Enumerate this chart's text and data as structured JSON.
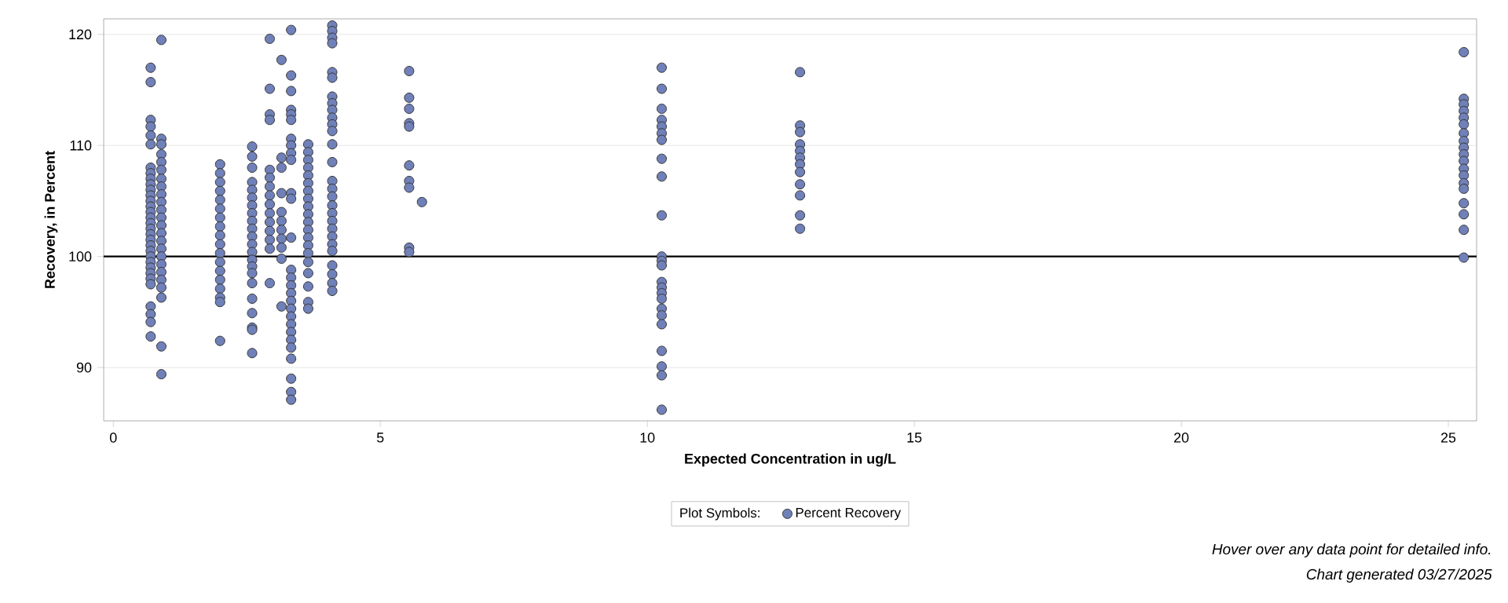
{
  "chart_data": {
    "type": "scatter",
    "xlabel": "Expected Concentration in ug/L",
    "ylabel": "Recovery, in Percent",
    "legend_title": "Plot Symbols:",
    "annotations": [
      "Hover over any data point for detailed info.",
      "Chart generated 03/27/2025"
    ],
    "xlim": [
      -0.18,
      25.53
    ],
    "ylim": [
      85.2,
      121.4
    ],
    "xticks": [
      0,
      5,
      10,
      15,
      20,
      25
    ],
    "yticks": [
      90,
      100,
      110,
      120
    ],
    "grid": "y",
    "legend": "bottom",
    "marker": "circle",
    "ref_lines": [
      {
        "axis": "y",
        "value": 100,
        "color": "#000000"
      }
    ],
    "series": [
      {
        "name": "Percent Recovery",
        "color": "#7080b8",
        "x": [
          0.7,
          0.7,
          0.7,
          0.7,
          0.7,
          0.7,
          0.7,
          0.7,
          0.7,
          0.7,
          0.7,
          0.7,
          0.7,
          0.7,
          0.7,
          0.7,
          0.7,
          0.7,
          0.7,
          0.7,
          0.7,
          0.7,
          0.7,
          0.7,
          0.7,
          0.7,
          0.7,
          0.7,
          0.7,
          0.7,
          0.7,
          0.7,
          0.9,
          0.9,
          0.9,
          0.9,
          0.9,
          0.9,
          0.9,
          0.9,
          0.9,
          0.9,
          0.9,
          0.9,
          0.9,
          0.9,
          0.9,
          0.9,
          0.9,
          0.9,
          0.9,
          0.9,
          0.9,
          0.9,
          0.9,
          0.9,
          2.0,
          2.0,
          2.0,
          2.0,
          2.0,
          2.0,
          2.0,
          2.0,
          2.0,
          2.0,
          2.0,
          2.0,
          2.0,
          2.0,
          2.0,
          2.0,
          2.0,
          2.0,
          2.6,
          2.6,
          2.6,
          2.6,
          2.6,
          2.6,
          2.6,
          2.6,
          2.6,
          2.6,
          2.6,
          2.6,
          2.6,
          2.6,
          2.6,
          2.6,
          2.6,
          2.6,
          2.6,
          2.6,
          2.6,
          2.6,
          2.93,
          2.93,
          2.93,
          2.93,
          2.93,
          2.93,
          2.93,
          2.93,
          2.93,
          2.93,
          2.93,
          2.93,
          2.93,
          2.93,
          2.93,
          3.15,
          3.15,
          3.15,
          3.15,
          3.15,
          3.15,
          3.15,
          3.15,
          3.15,
          3.15,
          3.15,
          3.33,
          3.33,
          3.33,
          3.33,
          3.33,
          3.33,
          3.33,
          3.33,
          3.33,
          3.33,
          3.33,
          3.33,
          3.33,
          3.33,
          3.33,
          3.33,
          3.33,
          3.33,
          3.33,
          3.33,
          3.33,
          3.33,
          3.33,
          3.33,
          3.33,
          3.33,
          3.33,
          3.33,
          3.65,
          3.65,
          3.65,
          3.65,
          3.65,
          3.65,
          3.65,
          3.65,
          3.65,
          3.65,
          3.65,
          3.65,
          3.65,
          3.65,
          3.65,
          3.65,
          3.65,
          3.65,
          3.65,
          3.65,
          4.1,
          4.1,
          4.1,
          4.1,
          4.1,
          4.1,
          4.1,
          4.1,
          4.1,
          4.1,
          4.1,
          4.1,
          4.1,
          4.1,
          4.1,
          4.1,
          4.1,
          4.1,
          4.1,
          4.1,
          4.1,
          4.1,
          4.1,
          4.1,
          4.1,
          4.1,
          4.1,
          4.1,
          5.54,
          5.54,
          5.54,
          5.54,
          5.54,
          5.54,
          5.54,
          5.54,
          5.54,
          5.54,
          5.78,
          10.27,
          10.27,
          10.27,
          10.27,
          10.27,
          10.27,
          10.27,
          10.27,
          10.27,
          10.27,
          10.27,
          10.27,
          10.27,
          10.27,
          10.27,
          10.27,
          10.27,
          10.27,
          10.27,
          10.27,
          10.27,
          10.27,
          10.27,
          10.27,
          12.86,
          12.86,
          12.86,
          12.86,
          12.86,
          12.86,
          12.86,
          12.86,
          12.86,
          12.86,
          12.86,
          12.86,
          25.29,
          25.29,
          25.29,
          25.29,
          25.29,
          25.29,
          25.29,
          25.29,
          25.29,
          25.29,
          25.29,
          25.29,
          25.29,
          25.29,
          25.29,
          25.29,
          25.29,
          25.29,
          25.29
        ],
        "values": [
          117.0,
          115.7,
          112.3,
          111.7,
          110.9,
          110.1,
          108.0,
          107.5,
          107.0,
          106.5,
          106.0,
          105.5,
          105.0,
          104.5,
          104.0,
          103.5,
          103.0,
          102.5,
          102.0,
          101.5,
          101.0,
          100.5,
          100.0,
          99.5,
          99.0,
          98.5,
          98.0,
          97.5,
          95.5,
          94.8,
          94.1,
          92.8,
          119.5,
          110.6,
          110.1,
          109.2,
          108.5,
          107.8,
          107.0,
          106.3,
          105.6,
          104.9,
          104.2,
          103.5,
          102.8,
          102.1,
          101.4,
          100.7,
          100.0,
          99.3,
          98.6,
          97.9,
          97.2,
          96.3,
          91.9,
          89.4,
          108.3,
          107.5,
          106.7,
          105.9,
          105.1,
          104.3,
          103.5,
          102.7,
          101.9,
          101.1,
          100.3,
          99.5,
          98.7,
          97.9,
          97.1,
          96.3,
          95.9,
          92.4,
          109.9,
          109.0,
          108.0,
          106.7,
          106.0,
          105.3,
          104.6,
          103.9,
          103.2,
          102.5,
          101.8,
          101.1,
          100.4,
          99.7,
          99.1,
          98.5,
          97.6,
          96.2,
          94.9,
          93.6,
          93.4,
          91.3,
          119.6,
          115.1,
          112.8,
          112.3,
          107.8,
          107.1,
          106.3,
          105.5,
          104.7,
          103.9,
          103.1,
          102.3,
          101.5,
          100.7,
          97.6,
          117.7,
          108.9,
          108.0,
          105.7,
          104.0,
          103.2,
          102.4,
          101.6,
          100.8,
          99.8,
          95.5,
          120.4,
          116.3,
          114.9,
          113.2,
          112.8,
          112.3,
          110.6,
          110.0,
          109.3,
          108.7,
          105.7,
          105.2,
          101.7,
          98.8,
          98.1,
          97.4,
          96.7,
          96.0,
          95.3,
          94.6,
          93.9,
          93.2,
          92.5,
          91.8,
          90.8,
          89.0,
          87.8,
          87.1,
          110.1,
          109.4,
          108.7,
          108.0,
          107.3,
          106.6,
          105.9,
          105.2,
          104.5,
          103.8,
          103.1,
          102.4,
          101.7,
          101.0,
          100.3,
          99.5,
          98.5,
          97.3,
          95.9,
          95.3,
          120.8,
          120.3,
          119.7,
          119.2,
          116.6,
          116.1,
          114.4,
          113.8,
          113.2,
          112.5,
          111.9,
          111.3,
          110.1,
          108.5,
          106.8,
          106.1,
          105.4,
          104.6,
          103.9,
          103.2,
          102.5,
          101.8,
          101.1,
          100.5,
          99.2,
          98.4,
          97.6,
          96.9,
          116.7,
          114.3,
          113.3,
          112.0,
          111.7,
          108.2,
          106.8,
          106.2,
          100.8,
          100.4,
          104.9,
          117.0,
          115.1,
          113.3,
          112.3,
          111.7,
          111.1,
          110.5,
          108.8,
          107.2,
          103.7,
          100.0,
          99.6,
          99.2,
          97.7,
          97.2,
          96.7,
          96.2,
          95.3,
          94.7,
          93.9,
          91.5,
          90.1,
          89.3,
          86.2,
          116.6,
          111.8,
          111.2,
          110.1,
          109.5,
          108.9,
          108.3,
          107.6,
          106.5,
          105.5,
          103.7,
          102.5,
          118.4,
          114.2,
          113.7,
          113.1,
          112.5,
          111.9,
          111.1,
          110.4,
          109.8,
          109.2,
          108.6,
          107.9,
          107.3,
          106.6,
          106.1,
          104.8,
          103.8,
          102.4,
          99.9
        ]
      }
    ]
  }
}
